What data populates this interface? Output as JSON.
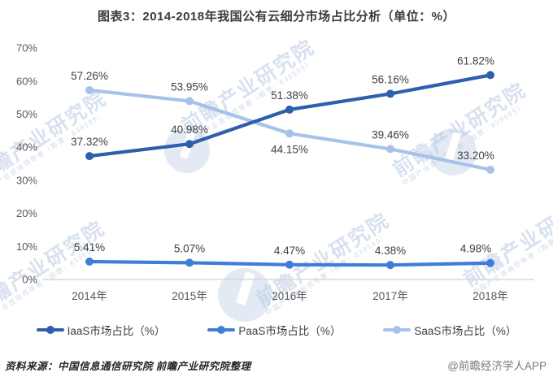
{
  "title": "图表3：2014-2018年我国公有云细分市场占比分析（单位：%）",
  "chart_data": {
    "type": "line",
    "categories": [
      "2014年",
      "2015年",
      "2016年",
      "2017年",
      "2018年"
    ],
    "x_values": [
      2014,
      2015,
      2016,
      2017,
      2018
    ],
    "series": [
      {
        "id": "iaas",
        "name": "IaaS市场占比（%）",
        "color": "#2e5fab",
        "values": [
          37.32,
          40.98,
          51.38,
          56.16,
          61.82
        ],
        "labels": [
          "37.32%",
          "40.98%",
          "51.38%",
          "56.16%",
          "61.82%"
        ],
        "label_side": [
          "above",
          "above",
          "above",
          "above",
          "above"
        ]
      },
      {
        "id": "paas",
        "name": "PaaS市场占比（%）",
        "color": "#3f7ed8",
        "values": [
          5.41,
          5.07,
          4.47,
          4.38,
          4.98
        ],
        "labels": [
          "5.41%",
          "5.07%",
          "4.47%",
          "4.38%",
          "4.98%"
        ],
        "label_side": [
          "above",
          "above",
          "above",
          "above",
          "above"
        ]
      },
      {
        "id": "saas",
        "name": "SaaS市场占比（%）",
        "color": "#a7c2ea",
        "values": [
          57.26,
          53.95,
          44.15,
          39.46,
          33.2
        ],
        "labels": [
          "57.26%",
          "53.95%",
          "44.15%",
          "39.46%",
          "33.20%"
        ],
        "label_side": [
          "above",
          "above",
          "below",
          "above",
          "above"
        ]
      }
    ],
    "ylim": [
      0,
      70
    ],
    "y_ticks": [
      "0%",
      "10%",
      "20%",
      "30%",
      "40%",
      "50%",
      "60%",
      "70%"
    ],
    "grid": false,
    "legend_position": "bottom",
    "data_labels": true,
    "axis_color": "#d8d8d8"
  },
  "footer": {
    "source": "资料来源：中国信息通信研究院 前瞻产业研究院整理",
    "credit": "@前瞻经济学人APP"
  },
  "watermark": {
    "text": "前瞻产业研究院",
    "subtext": "中国产业咨询领导者（股票：839599）"
  }
}
